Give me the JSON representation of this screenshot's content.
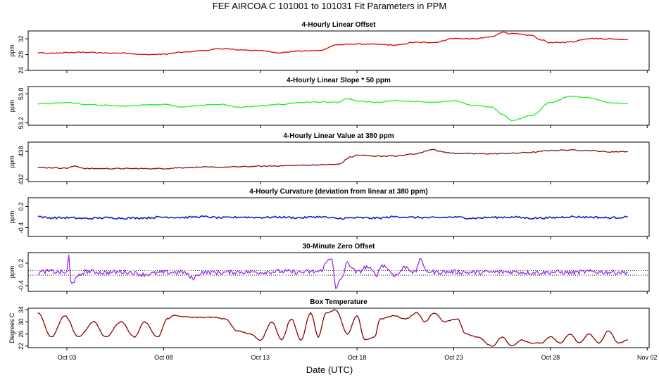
{
  "title": "FEF   AIRCOA C   101001 to 101031   Fit Parameters in PPM",
  "chart_data": {
    "type": "line",
    "xlabel": "Date (UTC)",
    "x_range_days": [
      0,
      32.1
    ],
    "x_ticks": [
      {
        "day": 2,
        "label": "Oct 03"
      },
      {
        "day": 7,
        "label": "Oct 08"
      },
      {
        "day": 12,
        "label": "Oct 13"
      },
      {
        "day": 17,
        "label": "Oct 18"
      },
      {
        "day": 22,
        "label": "Oct 23"
      },
      {
        "day": 27,
        "label": "Oct 28"
      },
      {
        "day": 32,
        "label": "Nov 02"
      }
    ],
    "panels": [
      {
        "title": "4-Hourly Linear Offset",
        "ylabel": "ppm",
        "ylim": [
          24,
          34
        ],
        "yticks": [
          "24",
          "28",
          "32"
        ],
        "ytick_values": [
          24,
          28,
          32
        ],
        "color": "#dd0000",
        "series": [
          [
            0.5,
            28.5
          ],
          [
            1,
            28.3
          ],
          [
            2,
            28.5
          ],
          [
            3,
            28.6
          ],
          [
            4,
            28.4
          ],
          [
            5,
            28.4
          ],
          [
            6,
            28.0
          ],
          [
            7,
            28.1
          ],
          [
            8,
            28.6
          ],
          [
            9,
            29.0
          ],
          [
            10,
            29.5
          ],
          [
            11,
            29.2
          ],
          [
            12,
            29.0
          ],
          [
            13,
            28.5
          ],
          [
            14,
            28.9
          ],
          [
            15,
            29.0
          ],
          [
            16,
            30.5
          ],
          [
            17,
            30.7
          ],
          [
            18,
            30.6
          ],
          [
            19,
            30.4
          ],
          [
            20,
            31.1
          ],
          [
            21,
            31.1
          ],
          [
            22,
            32.1
          ],
          [
            23,
            32.0
          ],
          [
            24,
            32.5
          ],
          [
            24.5,
            33.7
          ],
          [
            25,
            33.3
          ],
          [
            26,
            32.9
          ],
          [
            26.5,
            31.8
          ],
          [
            27,
            31.0
          ],
          [
            28,
            31.2
          ],
          [
            29,
            32.1
          ],
          [
            30,
            32.0
          ],
          [
            31,
            31.8
          ]
        ],
        "smooth": true,
        "marker_only": false
      },
      {
        "title": "4-Hourly Linear Slope * 50 ppm",
        "ylabel": "ppm",
        "ylim": [
          53.15,
          53.95
        ],
        "yticks": [
          "53.2",
          "53.8"
        ],
        "ytick_values": [
          53.2,
          53.8
        ],
        "color": "#22ee22",
        "series": [
          [
            0.5,
            53.6
          ],
          [
            1,
            53.6
          ],
          [
            2,
            53.62
          ],
          [
            3,
            53.58
          ],
          [
            4,
            53.56
          ],
          [
            5,
            53.55
          ],
          [
            6,
            53.57
          ],
          [
            7,
            53.58
          ],
          [
            8,
            53.53
          ],
          [
            9,
            53.57
          ],
          [
            10,
            53.58
          ],
          [
            11,
            53.52
          ],
          [
            12,
            53.55
          ],
          [
            13,
            53.58
          ],
          [
            14,
            53.62
          ],
          [
            15,
            53.63
          ],
          [
            16,
            53.62
          ],
          [
            16.5,
            53.7
          ],
          [
            17,
            53.65
          ],
          [
            18,
            53.62
          ],
          [
            19,
            53.66
          ],
          [
            20,
            53.64
          ],
          [
            21,
            53.62
          ],
          [
            22,
            53.66
          ],
          [
            23,
            53.56
          ],
          [
            24,
            53.52
          ],
          [
            24.5,
            53.38
          ],
          [
            25,
            53.25
          ],
          [
            26,
            53.35
          ],
          [
            27,
            53.62
          ],
          [
            28,
            53.75
          ],
          [
            29,
            53.72
          ],
          [
            30,
            53.62
          ],
          [
            31,
            53.6
          ]
        ],
        "smooth": true,
        "marker_only": false
      },
      {
        "title": "4-Hourly Linear Value at 380 ppm",
        "ylabel": "ppm",
        "ylim": [
          431.5,
          440
        ],
        "yticks": [
          "432",
          "438"
        ],
        "ytick_values": [
          432,
          438
        ],
        "color": "#8b1010",
        "series": [
          [
            0.5,
            434.5
          ],
          [
            1,
            434.5
          ],
          [
            2,
            434.4
          ],
          [
            2.4,
            434.8
          ],
          [
            3,
            434.3
          ],
          [
            4,
            434.3
          ],
          [
            5,
            434.3
          ],
          [
            6,
            434.3
          ],
          [
            7,
            434.3
          ],
          [
            8,
            434.5
          ],
          [
            9,
            434.6
          ],
          [
            10,
            434.6
          ],
          [
            11,
            434.7
          ],
          [
            12,
            434.8
          ],
          [
            13,
            434.9
          ],
          [
            14,
            435.0
          ],
          [
            15,
            435.1
          ],
          [
            16,
            435.2
          ],
          [
            16.7,
            436.8
          ],
          [
            17,
            437.2
          ],
          [
            18,
            437.0
          ],
          [
            19,
            437.0
          ],
          [
            20,
            437.5
          ],
          [
            21,
            438.5
          ],
          [
            21.2,
            438.0
          ],
          [
            22,
            437.6
          ],
          [
            23,
            437.5
          ],
          [
            24,
            437.5
          ],
          [
            25,
            437.6
          ],
          [
            26,
            437.8
          ],
          [
            27,
            438.2
          ],
          [
            28,
            438.3
          ],
          [
            29,
            438.2
          ],
          [
            30,
            437.9
          ],
          [
            31,
            438.0
          ]
        ],
        "smooth": true,
        "marker_only": false
      },
      {
        "title": "4-Hourly Curvature (deviation from linear at 380 ppm)",
        "ylabel": "ppm",
        "ylim": [
          -0.65,
          0.45
        ],
        "yticks": [
          "-0.4",
          "0.2"
        ],
        "ytick_values": [
          -0.4,
          0.2
        ],
        "color": "#1020c0",
        "series": [
          [
            0.5,
            -0.08
          ],
          [
            1,
            -0.12
          ],
          [
            2,
            -0.12
          ],
          [
            3,
            -0.14
          ],
          [
            4,
            -0.12
          ],
          [
            5,
            -0.13
          ],
          [
            6,
            -0.12
          ],
          [
            7,
            -0.1
          ],
          [
            8,
            -0.11
          ],
          [
            9,
            -0.09
          ],
          [
            10,
            -0.12
          ],
          [
            11,
            -0.1
          ],
          [
            12,
            -0.11
          ],
          [
            13,
            -0.1
          ],
          [
            14,
            -0.12
          ],
          [
            15,
            -0.09
          ],
          [
            16,
            -0.14
          ],
          [
            17,
            -0.12
          ],
          [
            18,
            -0.13
          ],
          [
            19,
            -0.09
          ],
          [
            20,
            -0.11
          ],
          [
            21,
            -0.12
          ],
          [
            22,
            -0.1
          ],
          [
            23,
            -0.13
          ],
          [
            24,
            -0.11
          ],
          [
            25,
            -0.1
          ],
          [
            26,
            -0.13
          ],
          [
            27,
            -0.12
          ],
          [
            28,
            -0.09
          ],
          [
            29,
            -0.1
          ],
          [
            30,
            -0.12
          ],
          [
            31,
            -0.1
          ]
        ],
        "smooth": false,
        "marker_only": false
      },
      {
        "title": "30-Minute Zero Offset",
        "ylabel": "ppm",
        "ylim": [
          -0.55,
          0.48
        ],
        "yticks": [
          "-0.4",
          "0.2"
        ],
        "ytick_values": [
          -0.4,
          0.2
        ],
        "color": "#9a30e8",
        "reference_lines": [
          0.0,
          -0.12
        ],
        "series": [
          [
            0.5,
            -0.05
          ],
          [
            1,
            -0.02
          ],
          [
            2,
            -0.05
          ],
          [
            2.1,
            0.4
          ],
          [
            2.2,
            -0.3
          ],
          [
            3,
            -0.02
          ],
          [
            4,
            -0.05
          ],
          [
            5,
            -0.03
          ],
          [
            6,
            -0.1
          ],
          [
            7,
            -0.05
          ],
          [
            8,
            -0.04
          ],
          [
            8.5,
            -0.2
          ],
          [
            9,
            -0.04
          ],
          [
            10,
            -0.05
          ],
          [
            11,
            -0.03
          ],
          [
            12,
            -0.04
          ],
          [
            13,
            -0.02
          ],
          [
            14,
            -0.04
          ],
          [
            15,
            -0.03
          ],
          [
            15.7,
            0.35
          ],
          [
            15.9,
            -0.5
          ],
          [
            16.2,
            -0.2
          ],
          [
            16.5,
            0.2
          ],
          [
            17,
            -0.05
          ],
          [
            17.5,
            0.1
          ],
          [
            18,
            -0.1
          ],
          [
            18.3,
            0.15
          ],
          [
            19,
            -0.12
          ],
          [
            19.5,
            0.1
          ],
          [
            20,
            -0.05
          ],
          [
            20.3,
            0.35
          ],
          [
            20.5,
            0.0
          ],
          [
            21,
            -0.04
          ],
          [
            22,
            -0.03
          ],
          [
            23,
            -0.05
          ],
          [
            24,
            -0.04
          ],
          [
            25,
            -0.03
          ],
          [
            26,
            -0.05
          ],
          [
            27,
            -0.04
          ],
          [
            28,
            -0.05
          ],
          [
            29,
            -0.03
          ],
          [
            30,
            -0.04
          ],
          [
            31,
            -0.04
          ]
        ],
        "smooth": false,
        "marker_only": false
      },
      {
        "title": "Box Temperature",
        "ylabel": "Degrees C",
        "ylim": [
          21.5,
          34.5
        ],
        "yticks": [
          "22",
          "26",
          "30",
          "34"
        ],
        "ytick_values": [
          22,
          26,
          30,
          34
        ],
        "color": "#8b0000",
        "series": [
          [
            0.5,
            33
          ],
          [
            1.2,
            25
          ],
          [
            1.9,
            32
          ],
          [
            2.6,
            25
          ],
          [
            3.4,
            30
          ],
          [
            4,
            25
          ],
          [
            4.8,
            30
          ],
          [
            5.5,
            25
          ],
          [
            6,
            30
          ],
          [
            6.7,
            25
          ],
          [
            7.2,
            31
          ],
          [
            7.5,
            32
          ],
          [
            8.5,
            31.5
          ],
          [
            9.5,
            31.5
          ],
          [
            10.2,
            31
          ],
          [
            10.8,
            27
          ],
          [
            11.5,
            26
          ],
          [
            12,
            24
          ],
          [
            12.6,
            30
          ],
          [
            13.1,
            24
          ],
          [
            13.6,
            31
          ],
          [
            14.1,
            24
          ],
          [
            14.6,
            33
          ],
          [
            15,
            25
          ],
          [
            15.4,
            33
          ],
          [
            15.9,
            34
          ],
          [
            16.5,
            26
          ],
          [
            17,
            32
          ],
          [
            17.4,
            24
          ],
          [
            17.9,
            25
          ],
          [
            18.2,
            31
          ],
          [
            18.9,
            32
          ],
          [
            19.5,
            31
          ],
          [
            20.1,
            33
          ],
          [
            20.5,
            30
          ],
          [
            21,
            33
          ],
          [
            21.5,
            30
          ],
          [
            22.2,
            31
          ],
          [
            22.6,
            26
          ],
          [
            23.2,
            25
          ],
          [
            24,
            22
          ],
          [
            24.5,
            25
          ],
          [
            25,
            22
          ],
          [
            25.5,
            24
          ],
          [
            26,
            23
          ],
          [
            26.5,
            23
          ],
          [
            27,
            25
          ],
          [
            27.5,
            23
          ],
          [
            28,
            26
          ],
          [
            28.5,
            23
          ],
          [
            29,
            26
          ],
          [
            29.5,
            23
          ],
          [
            30,
            27
          ],
          [
            30.5,
            23
          ],
          [
            31,
            24
          ]
        ],
        "smooth": true,
        "marker_only": false
      }
    ]
  }
}
